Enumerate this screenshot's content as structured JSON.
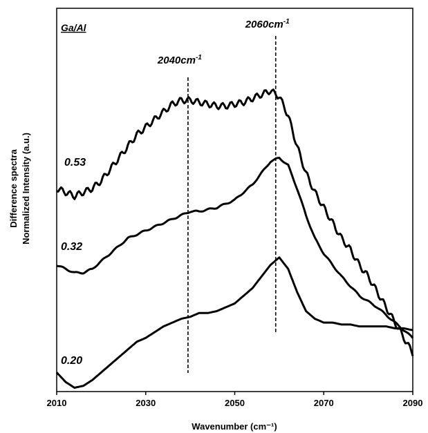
{
  "chart_data": {
    "type": "line",
    "legend_title": "Ga/Al",
    "xlabel": "Wavenumber (cm⁻¹)",
    "ylabel_line1": "Difference spectra",
    "ylabel_line2": "Normalized Intensity (a.u.)",
    "xlim": [
      2010,
      2090
    ],
    "xticks": [
      "2010",
      "2030",
      "2050",
      "2070",
      "2090"
    ],
    "ylim": [
      0,
      1
    ],
    "grid": false,
    "series": [
      {
        "name": "0.53",
        "x": [
          2010,
          2012,
          2014,
          2016,
          2018,
          2020,
          2022,
          2024,
          2026,
          2028,
          2030,
          2032,
          2034,
          2036,
          2038,
          2040,
          2042,
          2044,
          2046,
          2048,
          2050,
          2052,
          2054,
          2056,
          2058,
          2060,
          2062,
          2064,
          2066,
          2068,
          2070,
          2072,
          2074,
          2076,
          2078,
          2080,
          2082,
          2084,
          2086,
          2088,
          2090
        ],
        "y": [
          0.53,
          0.52,
          0.51,
          0.52,
          0.53,
          0.55,
          0.58,
          0.61,
          0.64,
          0.67,
          0.69,
          0.71,
          0.73,
          0.75,
          0.76,
          0.76,
          0.755,
          0.75,
          0.745,
          0.745,
          0.75,
          0.755,
          0.765,
          0.775,
          0.785,
          0.77,
          0.72,
          0.64,
          0.57,
          0.52,
          0.48,
          0.44,
          0.4,
          0.37,
          0.33,
          0.3,
          0.26,
          0.22,
          0.18,
          0.14,
          0.1
        ]
      },
      {
        "name": "0.32",
        "x": [
          2010,
          2012,
          2014,
          2016,
          2018,
          2020,
          2022,
          2024,
          2026,
          2028,
          2030,
          2032,
          2034,
          2036,
          2038,
          2040,
          2042,
          2044,
          2046,
          2048,
          2050,
          2052,
          2054,
          2056,
          2058,
          2060,
          2062,
          2064,
          2066,
          2068,
          2070,
          2072,
          2074,
          2076,
          2078,
          2080,
          2082,
          2084,
          2086,
          2088,
          2090
        ],
        "y": [
          0.33,
          0.32,
          0.31,
          0.31,
          0.32,
          0.34,
          0.36,
          0.38,
          0.4,
          0.41,
          0.42,
          0.43,
          0.44,
          0.45,
          0.46,
          0.47,
          0.47,
          0.475,
          0.48,
          0.49,
          0.5,
          0.52,
          0.54,
          0.57,
          0.6,
          0.61,
          0.59,
          0.53,
          0.46,
          0.4,
          0.36,
          0.33,
          0.3,
          0.275,
          0.25,
          0.235,
          0.22,
          0.2,
          0.18,
          0.16,
          0.14
        ]
      },
      {
        "name": "0.20",
        "x": [
          2010,
          2012,
          2014,
          2016,
          2018,
          2020,
          2022,
          2024,
          2026,
          2028,
          2030,
          2032,
          2034,
          2036,
          2038,
          2040,
          2042,
          2044,
          2046,
          2048,
          2050,
          2052,
          2054,
          2056,
          2058,
          2060,
          2062,
          2064,
          2066,
          2068,
          2070,
          2072,
          2074,
          2076,
          2078,
          2080,
          2082,
          2084,
          2086,
          2088,
          2090
        ],
        "y": [
          0.05,
          0.025,
          0.01,
          0.015,
          0.03,
          0.05,
          0.07,
          0.09,
          0.11,
          0.13,
          0.14,
          0.155,
          0.17,
          0.18,
          0.19,
          0.195,
          0.205,
          0.205,
          0.21,
          0.22,
          0.23,
          0.25,
          0.27,
          0.3,
          0.33,
          0.35,
          0.32,
          0.26,
          0.21,
          0.19,
          0.18,
          0.18,
          0.175,
          0.175,
          0.17,
          0.17,
          0.17,
          0.17,
          0.165,
          0.165,
          0.16
        ]
      }
    ],
    "annotations": [
      {
        "text": "2040cm",
        "sup": "-1",
        "x": 2039.5
      },
      {
        "text": "2060cm",
        "sup": "-1",
        "x": 2059.2
      }
    ]
  }
}
